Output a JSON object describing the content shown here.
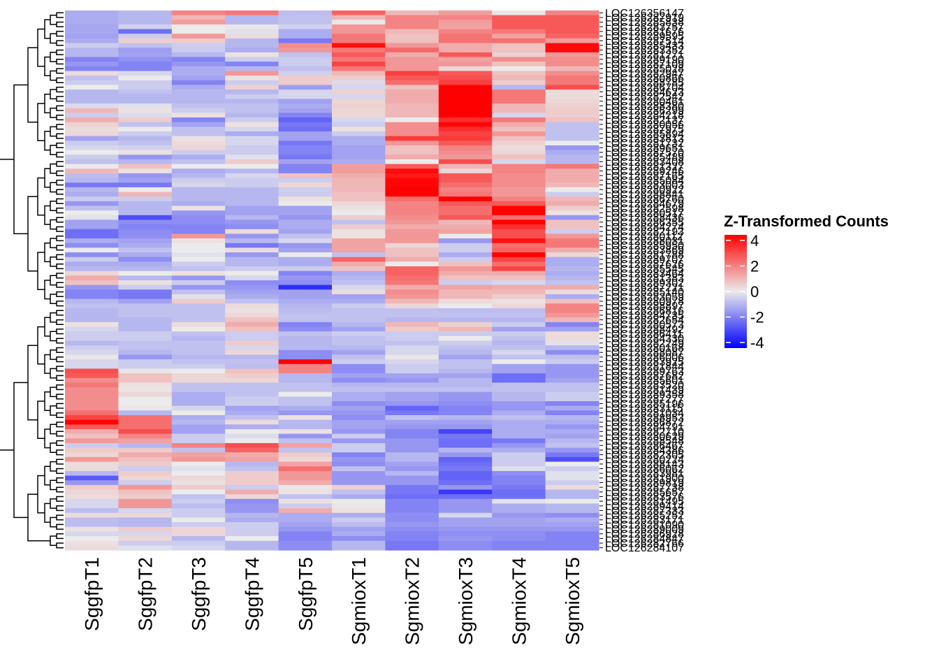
{
  "chart_data": {
    "type": "heatmap",
    "title": "",
    "xlabel": "",
    "ylabel": "",
    "columns": [
      "SggfpT1",
      "SggfpT2",
      "SggfpT3",
      "SggfpT4",
      "SggfpT5",
      "SgmioxT1",
      "SgmioxT2",
      "SgmioxT3",
      "SgmioxT4",
      "SgmioxT5"
    ],
    "row_labels_visible": {
      "first": "LOC126356147",
      "last": "LOC126284107",
      "note": "Remaining ~108 row labels (LOC126xxxxxx gene IDs) are overplotted and illegible"
    },
    "row_count_estimate": 110,
    "legend": {
      "title": "Z-Transformed Counts",
      "ticks": [
        4,
        2,
        0,
        -2,
        -4
      ],
      "range": [
        -4.5,
        4.5
      ],
      "low_color": "#0000FF",
      "mid_color": "#EBEBEB",
      "high_color": "#FF0000",
      "placement": "right"
    },
    "row_dendrogram": true,
    "column_dendrogram": false,
    "values": [
      [
        -1.2,
        -1.0,
        2.0,
        2.2,
        -0.9,
        2.6,
        1.0,
        1.5,
        0.1,
        2.0
      ],
      [
        -1.2,
        -1.0,
        1.0,
        -1.0,
        -0.8,
        1.0,
        2.0,
        2.0,
        2.8,
        2.8
      ],
      [
        -1.2,
        -1.0,
        1.5,
        -1.0,
        -0.8,
        0.1,
        2.0,
        1.5,
        2.8,
        2.8
      ],
      [
        -1.3,
        -0.5,
        0.0,
        0.1,
        -0.5,
        1.6,
        2.0,
        1.4,
        2.8,
        2.8
      ],
      [
        -1.3,
        -2.4,
        0.0,
        -0.2,
        -1.2,
        1.6,
        1.0,
        2.0,
        2.2,
        2.8
      ],
      [
        -1.4,
        -0.6,
        1.6,
        0.3,
        -1.2,
        2.2,
        0.8,
        2.3,
        1.4,
        2.6
      ],
      [
        -1.2,
        0.5,
        0.6,
        -1.0,
        -2.2,
        2.2,
        0.8,
        2.3,
        2.4,
        1.5
      ],
      [
        -0.6,
        -0.8,
        -0.6,
        -1.0,
        1.8,
        4.2,
        1.6,
        1.2,
        0.8,
        4.3
      ],
      [
        -1.0,
        -1.5,
        -0.6,
        -1.2,
        1.6,
        2.2,
        2.5,
        1.2,
        0.8,
        4.3
      ],
      [
        -1.0,
        -1.4,
        -1.0,
        0.2,
        -0.8,
        2.8,
        1.2,
        2.8,
        0.5,
        1.6
      ],
      [
        -2.0,
        -1.7,
        -2.0,
        -0.6,
        -0.6,
        2.2,
        1.6,
        1.4,
        1.8,
        1.8
      ],
      [
        -1.6,
        -2.0,
        -1.6,
        -2.0,
        -0.6,
        3.2,
        1.6,
        1.6,
        0.8,
        1.8
      ],
      [
        -2.0,
        -2.0,
        -1.2,
        -1.0,
        -0.8,
        2.2,
        1.6,
        0.4,
        0.0,
        1.0
      ],
      [
        0.3,
        -0.4,
        -1.2,
        1.6,
        -0.5,
        1.0,
        3.3,
        2.8,
        0.8,
        1.8
      ],
      [
        -0.8,
        0.0,
        -1.4,
        0.2,
        0.6,
        0.6,
        2.8,
        3.0,
        1.0,
        2.2
      ],
      [
        -0.6,
        -0.6,
        -2.0,
        -0.6,
        0.6,
        -0.3,
        2.4,
        3.3,
        0.6,
        2.2
      ],
      [
        0.0,
        -0.6,
        -1.2,
        0.5,
        -1.5,
        -0.4,
        0.8,
        4.5,
        -1.0,
        3.0
      ],
      [
        -1.0,
        -0.8,
        -1.0,
        -1.0,
        -0.4,
        0.5,
        1.2,
        4.5,
        2.2,
        0.3
      ],
      [
        -1.0,
        -1.0,
        -1.0,
        -0.6,
        -0.4,
        -0.4,
        1.2,
        4.5,
        2.2,
        0.3
      ],
      [
        -1.0,
        -1.0,
        -1.0,
        -1.0,
        -1.4,
        0.4,
        1.2,
        4.5,
        2.2,
        0.4
      ],
      [
        -0.3,
        -0.2,
        -0.8,
        -0.8,
        -1.2,
        0.5,
        1.0,
        4.5,
        1.0,
        0.5
      ],
      [
        1.0,
        0.2,
        -0.6,
        -0.8,
        -1.4,
        0.4,
        1.0,
        4.5,
        1.0,
        0.6
      ],
      [
        -0.6,
        -0.3,
        0.2,
        -1.0,
        -2.0,
        0.4,
        1.0,
        4.5,
        -0.4,
        0.6
      ],
      [
        1.2,
        0.6,
        -2.0,
        -0.6,
        -2.6,
        -0.4,
        0.0,
        3.6,
        2.2,
        0.8
      ],
      [
        0.5,
        -0.8,
        -1.4,
        0.2,
        -2.2,
        -0.6,
        1.8,
        4.4,
        1.2,
        -0.8
      ],
      [
        0.3,
        0.0,
        -0.8,
        -0.4,
        -2.4,
        0.2,
        1.8,
        3.6,
        0.8,
        -0.8
      ],
      [
        0.4,
        -0.6,
        -0.8,
        -1.2,
        -1.4,
        -0.6,
        1.8,
        3.2,
        1.6,
        -0.8
      ],
      [
        -1.4,
        -1.0,
        0.2,
        -0.4,
        -1.4,
        -1.2,
        3.4,
        3.4,
        0.8,
        -0.8
      ],
      [
        -0.6,
        -0.8,
        0.3,
        -0.4,
        -2.2,
        -1.2,
        1.6,
        2.8,
        0.5,
        0.0
      ],
      [
        -0.4,
        -0.5,
        0.4,
        -0.6,
        -2.0,
        -1.4,
        0.8,
        2.0,
        0.3,
        -1.6
      ],
      [
        0.0,
        0.2,
        -0.6,
        -0.6,
        -2.0,
        -1.4,
        0.8,
        1.8,
        0.4,
        -1.2
      ],
      [
        -0.6,
        -1.6,
        -1.2,
        -0.2,
        -2.2,
        -1.4,
        1.2,
        1.6,
        0.8,
        -1.0
      ],
      [
        -0.8,
        -1.0,
        -0.8,
        0.6,
        -1.4,
        -1.2,
        0.0,
        3.0,
        -0.4,
        -1.0
      ],
      [
        0.0,
        0.8,
        0.0,
        0.0,
        -2.0,
        1.5,
        2.8,
        1.0,
        2.0,
        2.2
      ],
      [
        1.0,
        0.2,
        -1.2,
        -1.0,
        -2.0,
        1.5,
        4.3,
        0.4,
        2.0,
        1.2
      ],
      [
        -0.9,
        -1.6,
        -1.0,
        -0.4,
        0.8,
        1.2,
        4.0,
        2.8,
        1.8,
        1.2
      ],
      [
        -1.0,
        -1.4,
        -0.6,
        -0.6,
        -0.6,
        1.0,
        4.4,
        2.8,
        1.8,
        1.2
      ],
      [
        -2.2,
        -2.2,
        -0.4,
        -0.6,
        0.4,
        1.0,
        4.4,
        2.4,
        1.8,
        1.0
      ],
      [
        -1.0,
        0.0,
        -1.0,
        -1.0,
        -0.6,
        1.0,
        4.5,
        2.0,
        1.6,
        0.0
      ],
      [
        -1.2,
        1.0,
        -1.0,
        -1.0,
        -0.6,
        0.8,
        4.5,
        2.2,
        1.6,
        -0.6
      ],
      [
        -0.6,
        -0.6,
        -1.0,
        -1.0,
        0.2,
        0.8,
        2.4,
        4.5,
        2.0,
        1.0
      ],
      [
        -1.6,
        -1.0,
        -1.2,
        -1.0,
        0.0,
        0.4,
        2.0,
        2.8,
        2.8,
        1.2
      ],
      [
        -0.8,
        -1.0,
        0.2,
        -1.4,
        -1.4,
        0.2,
        2.0,
        2.4,
        4.5,
        0.6
      ],
      [
        0.0,
        -1.0,
        -1.6,
        -1.4,
        -1.4,
        0.0,
        2.0,
        2.4,
        4.5,
        0.2
      ],
      [
        -0.2,
        -3.0,
        -1.8,
        -1.0,
        -1.6,
        0.6,
        1.8,
        2.8,
        2.4,
        -1.6
      ],
      [
        -1.4,
        -1.8,
        -1.8,
        -1.6,
        -1.2,
        -0.8,
        1.6,
        1.0,
        4.5,
        0.8
      ],
      [
        -1.4,
        -2.0,
        -2.0,
        -1.8,
        -1.2,
        0.6,
        1.2,
        1.2,
        3.6,
        0.8
      ],
      [
        -2.4,
        -1.8,
        -2.0,
        0.3,
        -1.4,
        0.2,
        1.6,
        1.4,
        3.0,
        -0.6
      ],
      [
        -2.4,
        -1.8,
        1.6,
        -1.6,
        -0.8,
        0.2,
        1.6,
        0.0,
        3.0,
        1.6
      ],
      [
        -1.2,
        -1.4,
        0.2,
        -1.0,
        -0.4,
        1.4,
        1.6,
        -1.6,
        4.2,
        2.2
      ],
      [
        -1.8,
        -1.2,
        0.0,
        -2.2,
        -1.6,
        1.4,
        0.4,
        -0.6,
        2.4,
        2.2
      ],
      [
        0.0,
        -0.8,
        0.0,
        0.3,
        -1.4,
        1.4,
        0.8,
        -0.6,
        2.6,
        1.2
      ],
      [
        -1.8,
        -1.2,
        -0.2,
        -1.6,
        0.0,
        -0.8,
        0.8,
        -1.2,
        4.5,
        0.4
      ],
      [
        -0.6,
        -1.8,
        0.0,
        -1.0,
        -1.2,
        2.6,
        1.2,
        -0.6,
        3.2,
        -1.2
      ],
      [
        -1.2,
        -1.2,
        -0.6,
        -1.0,
        -1.2,
        1.2,
        0.0,
        0.8,
        2.4,
        -1.2
      ],
      [
        -1.0,
        -1.0,
        -0.8,
        -0.6,
        -0.6,
        0.8,
        2.6,
        1.6,
        3.2,
        -1.0
      ],
      [
        0.4,
        0.0,
        0.2,
        0.0,
        -2.0,
        -1.2,
        2.6,
        1.2,
        1.2,
        -1.2
      ],
      [
        1.2,
        -1.0,
        -1.6,
        -0.4,
        -1.6,
        -1.0,
        2.4,
        0.8,
        0.8,
        -1.0
      ],
      [
        0.8,
        0.2,
        -0.6,
        -1.8,
        -1.8,
        -0.8,
        2.2,
        -0.6,
        -0.4,
        -0.8
      ],
      [
        -1.6,
        -0.6,
        -1.6,
        -1.6,
        -3.6,
        -0.4,
        1.2,
        1.4,
        1.2,
        1.2
      ],
      [
        -2.0,
        -2.2,
        -0.8,
        -1.4,
        -1.4,
        0.3,
        1.8,
        1.0,
        1.0,
        0.3
      ],
      [
        -2.0,
        -2.2,
        -0.2,
        -1.2,
        -1.4,
        -1.4,
        1.6,
        1.0,
        0.6,
        -1.2
      ],
      [
        -1.0,
        -1.4,
        0.6,
        -0.8,
        -1.2,
        -1.2,
        1.0,
        0.3,
        0.2,
        0.8
      ],
      [
        -0.8,
        -0.8,
        -0.8,
        0.3,
        -1.0,
        -0.6,
        0.4,
        0.0,
        0.4,
        2.0
      ],
      [
        -1.0,
        -0.8,
        -0.8,
        0.2,
        -0.9,
        -0.8,
        -0.8,
        -0.9,
        -0.9,
        2.0
      ],
      [
        -1.0,
        -0.8,
        -0.8,
        0.4,
        -0.8,
        -0.8,
        -0.8,
        -0.8,
        -0.8,
        1.6
      ],
      [
        -1.0,
        -1.0,
        -0.8,
        0.8,
        -0.8,
        -0.8,
        -1.0,
        -1.0,
        -1.0,
        1.0
      ],
      [
        0.2,
        -1.0,
        0.3,
        1.2,
        -2.0,
        -1.0,
        1.0,
        0.5,
        -0.6,
        -2.0
      ],
      [
        -0.4,
        -1.0,
        0.0,
        0.8,
        -1.8,
        -1.4,
        0.6,
        1.0,
        -1.4,
        -1.4
      ],
      [
        -0.6,
        -0.6,
        -0.8,
        -0.6,
        -0.8,
        -0.6,
        -0.6,
        -0.6,
        -0.6,
        0.3
      ],
      [
        -0.6,
        -0.6,
        -1.0,
        -0.6,
        -1.0,
        -0.8,
        -0.6,
        0.0,
        -0.8,
        0.3
      ],
      [
        -1.0,
        -0.8,
        -0.8,
        0.6,
        -1.0,
        -0.8,
        -0.8,
        -0.6,
        -1.0,
        -0.2
      ],
      [
        -0.6,
        -0.8,
        -0.8,
        -0.4,
        -1.0,
        -1.0,
        -0.4,
        -0.8,
        -0.8,
        -1.0
      ],
      [
        -0.4,
        -1.0,
        -0.8,
        0.4,
        -1.8,
        -1.4,
        -0.4,
        -1.0,
        -0.4,
        -1.8
      ],
      [
        0.1,
        -1.6,
        -1.0,
        -1.0,
        -1.8,
        -0.8,
        0.1,
        -1.4,
        -0.8,
        -0.8
      ],
      [
        -0.4,
        -0.6,
        -0.8,
        -0.8,
        4.5,
        -0.6,
        -0.4,
        -0.8,
        0.0,
        -0.6
      ],
      [
        -0.4,
        -0.6,
        -0.6,
        -0.9,
        2.0,
        -1.8,
        -0.6,
        -0.8,
        -1.4,
        -1.6
      ],
      [
        3.0,
        0.1,
        0.0,
        0.8,
        2.0,
        -1.8,
        -0.6,
        -1.0,
        -1.4,
        -1.6
      ],
      [
        2.8,
        0.8,
        0.4,
        0.6,
        -1.0,
        -1.4,
        -1.4,
        -1.4,
        -2.4,
        -1.6
      ],
      [
        1.8,
        0.8,
        0.4,
        0.4,
        -1.0,
        -1.8,
        -1.6,
        -1.0,
        -2.4,
        -1.4
      ],
      [
        2.2,
        0.2,
        -0.8,
        -0.8,
        -0.8,
        -1.0,
        -1.0,
        -1.0,
        -0.8,
        -0.8
      ],
      [
        1.8,
        0.1,
        -0.8,
        -0.8,
        -0.8,
        -0.8,
        -0.8,
        -0.8,
        -0.8,
        -0.8
      ],
      [
        1.8,
        0.4,
        -1.2,
        -0.8,
        0.0,
        -1.2,
        -1.4,
        -1.6,
        -1.0,
        -0.6
      ],
      [
        1.8,
        0.0,
        -1.2,
        -0.6,
        -0.8,
        -1.2,
        -1.4,
        -1.6,
        -1.0,
        -0.6
      ],
      [
        1.8,
        0.0,
        -1.2,
        -0.6,
        -0.8,
        -1.8,
        -1.6,
        -1.8,
        -1.6,
        -2.0
      ],
      [
        1.8,
        0.1,
        -0.4,
        -1.4,
        -1.2,
        -1.4,
        -2.6,
        -2.0,
        -1.6,
        -1.2
      ],
      [
        2.4,
        -1.0,
        0.0,
        -1.2,
        -1.6,
        -1.6,
        -2.2,
        -2.0,
        -1.2,
        -2.0
      ],
      [
        3.2,
        2.4,
        -1.2,
        -0.8,
        0.2,
        -1.8,
        -0.8,
        -1.0,
        -0.8,
        -1.0
      ],
      [
        4.5,
        2.4,
        -1.0,
        0.3,
        -1.0,
        -1.4,
        -1.4,
        -1.4,
        -1.2,
        -1.2
      ],
      [
        2.8,
        2.4,
        -1.4,
        -1.2,
        -1.0,
        -1.4,
        -1.6,
        -1.6,
        -1.2,
        -1.6
      ],
      [
        1.2,
        3.0,
        -1.4,
        0.0,
        0.2,
        -1.6,
        -2.0,
        -3.2,
        -1.2,
        -1.2
      ],
      [
        0.8,
        2.0,
        -0.6,
        -0.3,
        -1.6,
        -0.6,
        -2.0,
        -2.2,
        -1.2,
        -1.4
      ],
      [
        1.6,
        1.4,
        -0.6,
        0.0,
        -0.8,
        -1.6,
        -1.6,
        -2.4,
        -2.2,
        -1.0
      ],
      [
        -0.6,
        -1.0,
        2.0,
        3.0,
        1.4,
        -0.6,
        -1.6,
        -2.4,
        -1.6,
        -0.8
      ],
      [
        0.6,
        0.6,
        -0.8,
        2.6,
        -0.8,
        -0.6,
        -1.6,
        -1.0,
        -1.2,
        -1.6
      ],
      [
        0.4,
        1.2,
        1.4,
        1.2,
        0.6,
        -2.0,
        -1.0,
        -1.6,
        -0.6,
        -2.2
      ],
      [
        1.6,
        0.8,
        1.6,
        1.4,
        0.4,
        -1.6,
        -1.0,
        -2.6,
        -0.6,
        -3.0
      ],
      [
        0.3,
        0.6,
        0.0,
        -1.0,
        1.4,
        -1.8,
        -1.4,
        -2.4,
        -0.6,
        0.0
      ],
      [
        0.3,
        -0.6,
        -0.2,
        -0.8,
        2.4,
        -0.8,
        -1.6,
        -2.2,
        -0.2,
        -0.6
      ],
      [
        -1.0,
        0.6,
        0.0,
        0.6,
        1.6,
        -1.6,
        -1.0,
        -2.6,
        -1.8,
        -0.2
      ],
      [
        -2.8,
        0.4,
        0.4,
        0.6,
        1.6,
        -1.6,
        -1.6,
        -2.6,
        -2.0,
        -0.2
      ],
      [
        -1.6,
        -0.6,
        0.2,
        0.6,
        1.2,
        -1.6,
        -1.6,
        -2.4,
        -2.0,
        -0.6
      ],
      [
        0.6,
        1.6,
        0.6,
        -0.6,
        0.1,
        0.5,
        -2.2,
        -1.6,
        -2.2,
        0.3
      ],
      [
        0.4,
        0.8,
        0.0,
        1.2,
        0.2,
        -0.8,
        -2.2,
        -3.4,
        -2.4,
        -1.0
      ],
      [
        0.3,
        0.6,
        -0.8,
        0.4,
        -0.8,
        -1.2,
        -2.4,
        -2.4,
        -2.4,
        -1.0
      ],
      [
        -0.4,
        1.6,
        -0.6,
        -1.8,
        0.2,
        0.0,
        -2.0,
        -1.6,
        -0.2,
        0.0
      ],
      [
        -0.4,
        1.6,
        -0.9,
        -1.6,
        -0.6,
        0.1,
        -2.0,
        -1.6,
        -1.2,
        -1.0
      ],
      [
        -0.9,
        -0.4,
        -0.6,
        -1.6,
        1.2,
        0.2,
        -2.0,
        -1.6,
        -1.2,
        -1.0
      ],
      [
        0.3,
        0.4,
        -0.6,
        -1.0,
        -1.2,
        -1.2,
        -1.8,
        -0.4,
        -1.6,
        -1.8
      ],
      [
        -0.9,
        -1.0,
        0.0,
        -1.2,
        -1.2,
        -0.6,
        -1.8,
        -1.4,
        -1.4,
        -1.2
      ],
      [
        -0.9,
        -1.0,
        -0.6,
        -0.6,
        -1.4,
        -0.9,
        -1.6,
        -1.4,
        -1.4,
        -1.4
      ],
      [
        0.2,
        0.6,
        0.4,
        -0.6,
        -1.6,
        -1.4,
        -1.8,
        -1.6,
        -1.6,
        -1.6
      ],
      [
        -0.4,
        -0.4,
        0.4,
        -0.6,
        -2.0,
        -1.2,
        -2.0,
        -1.8,
        -1.8,
        -2.0
      ],
      [
        0.0,
        0.4,
        -1.0,
        0.0,
        -2.0,
        -1.8,
        -2.0,
        -1.6,
        -1.8,
        -2.0
      ],
      [
        0.2,
        -0.6,
        -0.6,
        -1.0,
        -1.8,
        -1.0,
        -2.2,
        -1.8,
        -2.0,
        -2.0
      ],
      [
        0.3,
        -0.2,
        -0.4,
        -1.0,
        -1.8,
        -1.0,
        -2.2,
        -1.8,
        -2.0,
        -2.0
      ]
    ]
  }
}
